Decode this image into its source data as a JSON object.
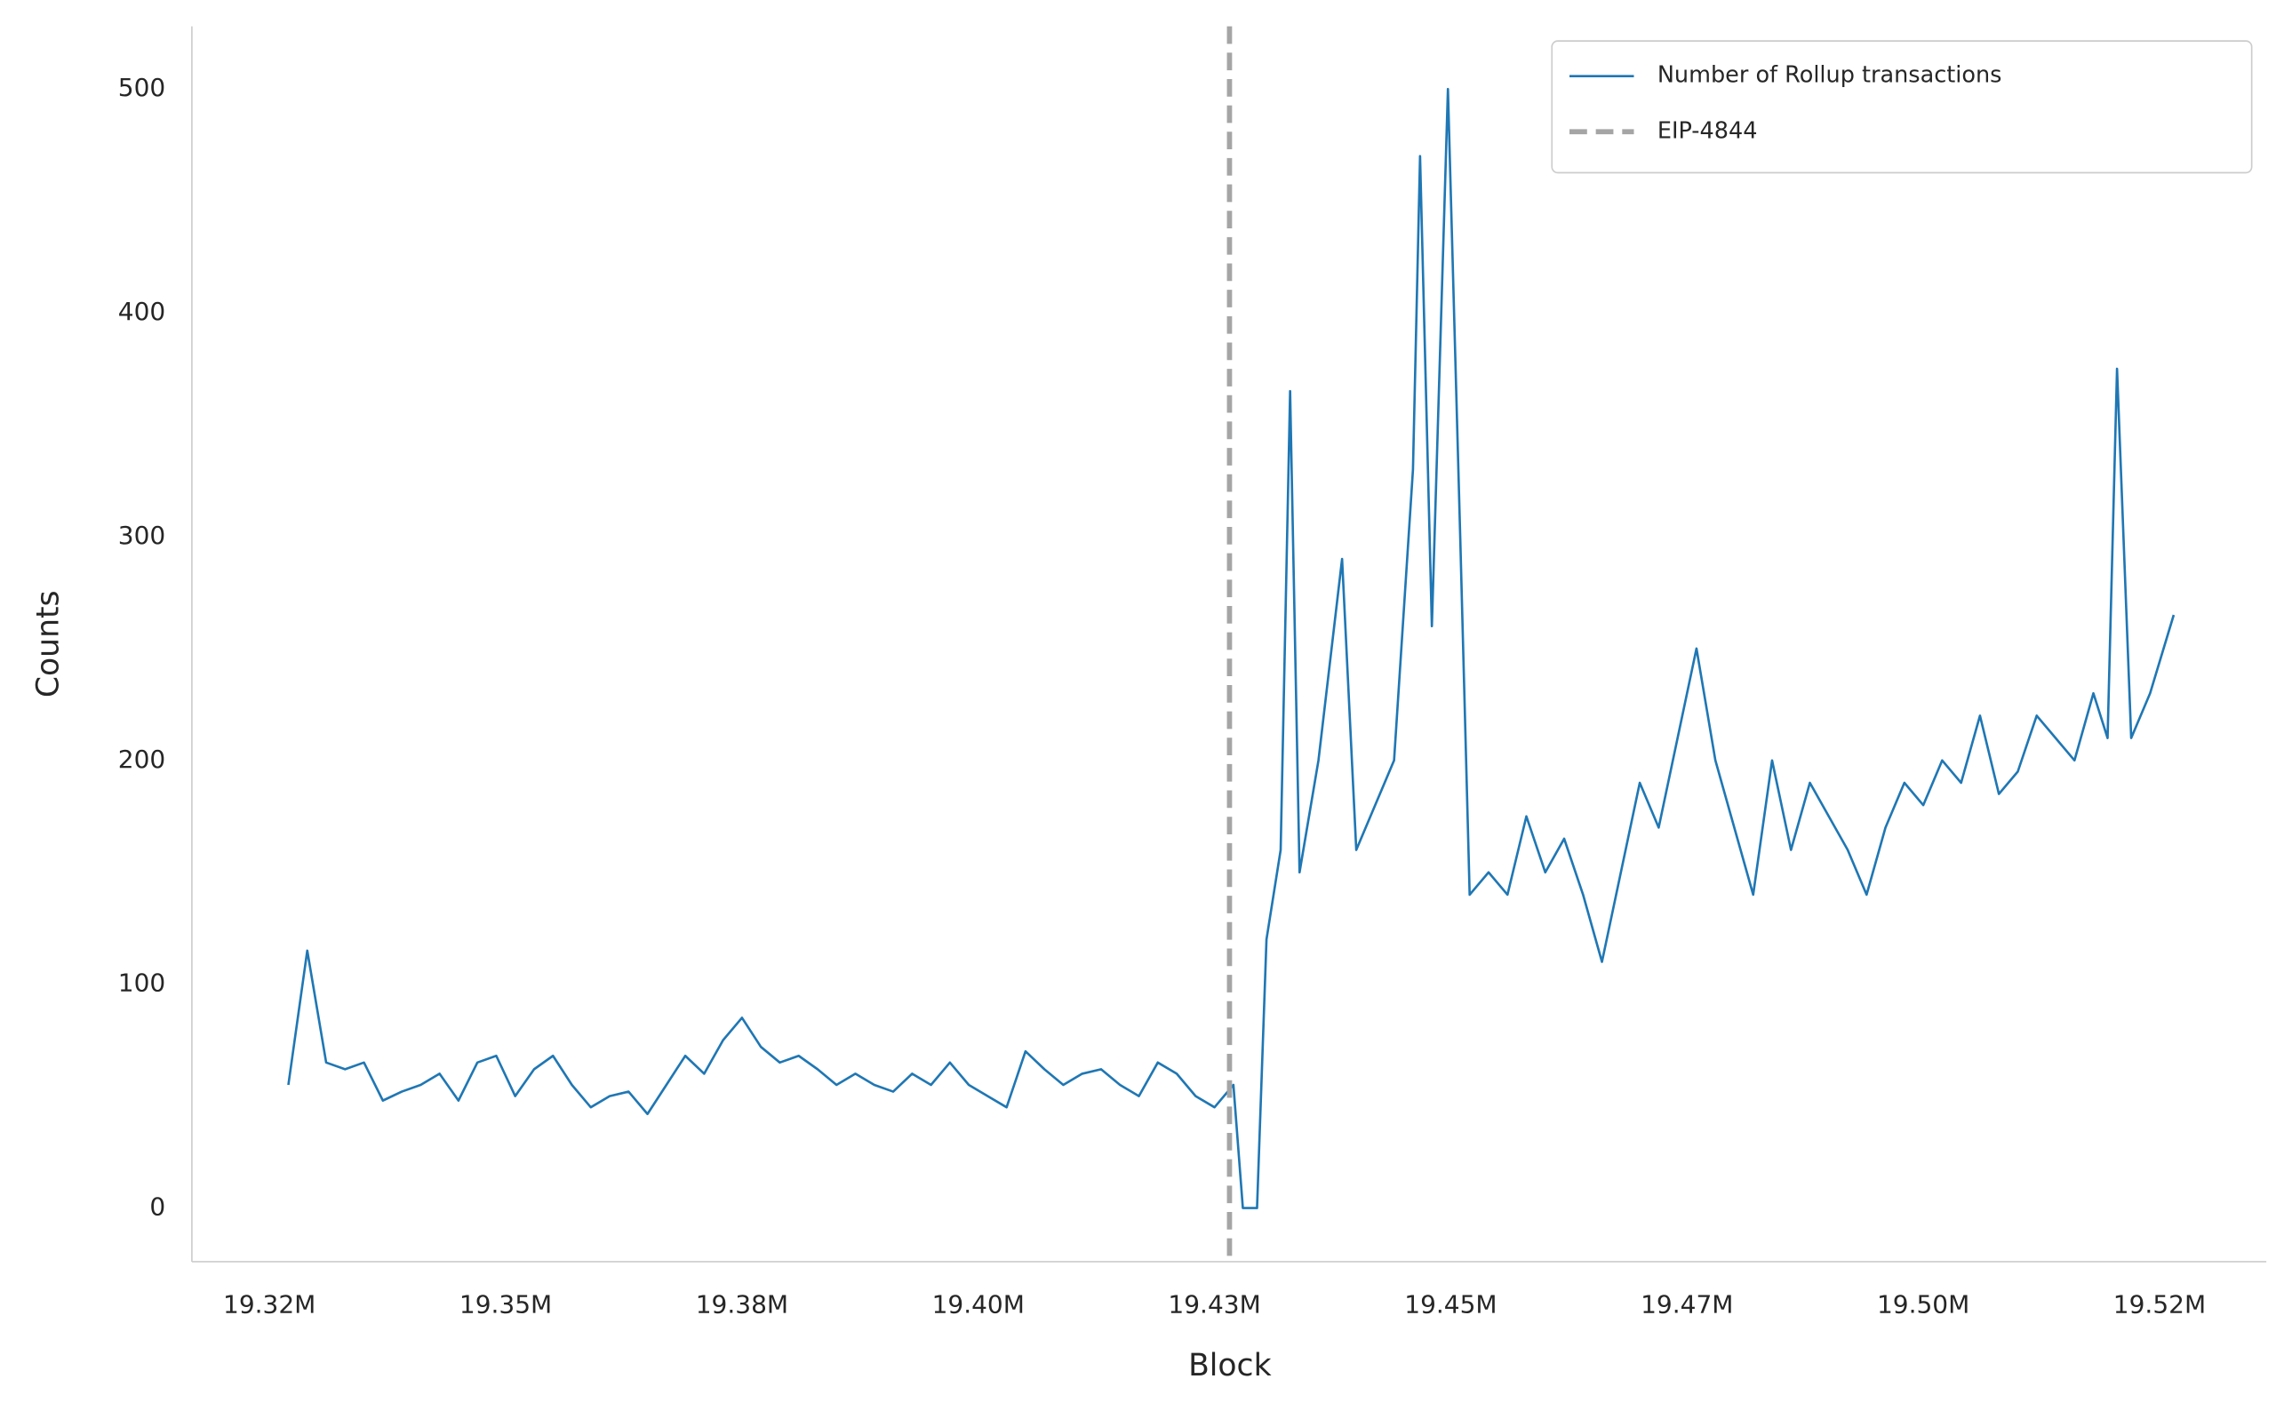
{
  "chart_data": {
    "type": "line",
    "xlabel": "Block",
    "ylabel": "Counts",
    "x": [
      19327000,
      19329000,
      19331000,
      19333000,
      19335000,
      19337000,
      19339000,
      19341000,
      19343000,
      19345000,
      19347000,
      19349000,
      19351000,
      19353000,
      19355000,
      19357000,
      19359000,
      19361000,
      19363000,
      19365000,
      19367000,
      19369000,
      19371000,
      19373000,
      19375000,
      19377000,
      19379000,
      19381000,
      19383000,
      19385000,
      19387000,
      19389000,
      19391000,
      19393000,
      19395000,
      19397000,
      19399000,
      19401000,
      19403000,
      19405000,
      19407000,
      19409000,
      19411000,
      19413000,
      19415000,
      19417000,
      19419000,
      19421000,
      19423000,
      19425000,
      19427000,
      19428000,
      19429500,
      19430500,
      19432000,
      19433000,
      19434000,
      19436000,
      19438500,
      19440000,
      19442000,
      19444000,
      19446000,
      19446750,
      19448000,
      19449700,
      19451000,
      19452000,
      19454000,
      19456000,
      19458000,
      19460000,
      19462000,
      19464000,
      19466000,
      19468000,
      19470000,
      19472000,
      19474000,
      19476000,
      19478000,
      19480000,
      19482000,
      19484000,
      19486000,
      19488000,
      19490000,
      19492000,
      19494000,
      19496000,
      19498000,
      19500000,
      19502000,
      19504000,
      19506000,
      19508000,
      19510000,
      19512000,
      19514000,
      19516000,
      19518000,
      19519500,
      19520500,
      19522000,
      19524000,
      19526500
    ],
    "series": [
      {
        "name": "Number of Rollup transactions",
        "color": "#1f77b4",
        "values": [
          55,
          115,
          65,
          62,
          65,
          48,
          52,
          55,
          60,
          48,
          65,
          68,
          50,
          62,
          68,
          55,
          45,
          50,
          52,
          42,
          55,
          68,
          60,
          75,
          85,
          72,
          65,
          68,
          62,
          55,
          60,
          55,
          52,
          60,
          55,
          65,
          55,
          50,
          45,
          70,
          62,
          55,
          60,
          62,
          55,
          50,
          65,
          60,
          50,
          45,
          55,
          0,
          0,
          120,
          160,
          365,
          150,
          200,
          290,
          160,
          180,
          200,
          330,
          470,
          260,
          500,
          300,
          140,
          150,
          140,
          175,
          150,
          165,
          140,
          110,
          150,
          190,
          170,
          210,
          250,
          200,
          170,
          140,
          200,
          160,
          190,
          175,
          160,
          140,
          170,
          190,
          180,
          200,
          190,
          220,
          185,
          195,
          220,
          210,
          200,
          230,
          210,
          375,
          210,
          230,
          265
        ]
      }
    ],
    "vlines": [
      {
        "name": "EIP-4844",
        "x": 19426587,
        "color": "#a5a5a5"
      }
    ],
    "xlim": [
      19316790,
      19536300
    ],
    "ylim": [
      -24,
      528
    ],
    "xticks": [
      {
        "value": 19325000,
        "label": "19.32M"
      },
      {
        "value": 19350000,
        "label": "19.35M"
      },
      {
        "value": 19375000,
        "label": "19.38M"
      },
      {
        "value": 19400000,
        "label": "19.40M"
      },
      {
        "value": 19425000,
        "label": "19.43M"
      },
      {
        "value": 19450000,
        "label": "19.45M"
      },
      {
        "value": 19475000,
        "label": "19.47M"
      },
      {
        "value": 19500000,
        "label": "19.50M"
      },
      {
        "value": 19525000,
        "label": "19.52M"
      }
    ],
    "yticks": [
      0,
      100,
      200,
      300,
      400,
      500
    ],
    "grid": false,
    "legend": "upper right"
  }
}
